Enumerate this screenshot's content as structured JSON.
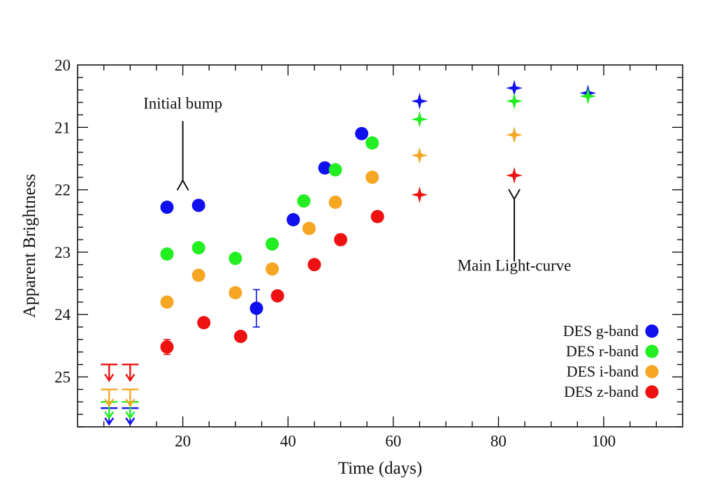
{
  "chart_data": {
    "type": "scatter",
    "title": "",
    "xlabel": "Time (days)",
    "ylabel": "Apparent Brightness",
    "xlim": [
      0,
      115
    ],
    "ylim": [
      25.8,
      20
    ],
    "y_inverted": true,
    "xticks": [
      20,
      40,
      60,
      80,
      100
    ],
    "yticks": [
      20,
      21,
      22,
      23,
      24,
      25
    ],
    "x_minor_step": 5,
    "y_minor_step": 0.2,
    "grid": false,
    "legend_position": "bottom-right",
    "series": [
      {
        "name": "DES g-band",
        "color": "#1010ee",
        "points": [
          {
            "x": 17,
            "y": 22.28,
            "marker": "circle"
          },
          {
            "x": 23,
            "y": 22.25,
            "marker": "circle"
          },
          {
            "x": 34,
            "y": 23.9,
            "marker": "circle",
            "yerr": 0.3
          },
          {
            "x": 41,
            "y": 22.48,
            "marker": "circle"
          },
          {
            "x": 47,
            "y": 21.65,
            "marker": "circle"
          },
          {
            "x": 54,
            "y": 21.1,
            "marker": "circle"
          },
          {
            "x": 65,
            "y": 20.58,
            "marker": "star"
          },
          {
            "x": 83,
            "y": 20.37,
            "marker": "star"
          },
          {
            "x": 97,
            "y": 20.45,
            "marker": "star"
          }
        ],
        "upper_limits": [
          {
            "x": 6,
            "y": 25.5
          },
          {
            "x": 10,
            "y": 25.5
          }
        ]
      },
      {
        "name": "DES r-band",
        "color": "#22ee22",
        "points": [
          {
            "x": 17,
            "y": 23.03,
            "marker": "circle"
          },
          {
            "x": 23,
            "y": 22.93,
            "marker": "circle"
          },
          {
            "x": 30,
            "y": 23.1,
            "marker": "circle"
          },
          {
            "x": 37,
            "y": 22.87,
            "marker": "circle"
          },
          {
            "x": 43,
            "y": 22.18,
            "marker": "circle"
          },
          {
            "x": 49,
            "y": 21.68,
            "marker": "circle"
          },
          {
            "x": 56,
            "y": 21.25,
            "marker": "circle"
          },
          {
            "x": 65,
            "y": 20.87,
            "marker": "star"
          },
          {
            "x": 83,
            "y": 20.58,
            "marker": "star"
          },
          {
            "x": 97,
            "y": 20.5,
            "marker": "star"
          }
        ],
        "upper_limits": [
          {
            "x": 6,
            "y": 25.4
          },
          {
            "x": 10,
            "y": 25.4
          }
        ]
      },
      {
        "name": "DES i-band",
        "color": "#f5a623",
        "points": [
          {
            "x": 17,
            "y": 23.8,
            "marker": "circle"
          },
          {
            "x": 23,
            "y": 23.37,
            "marker": "circle"
          },
          {
            "x": 30,
            "y": 23.65,
            "marker": "circle"
          },
          {
            "x": 37,
            "y": 23.27,
            "marker": "circle"
          },
          {
            "x": 44,
            "y": 22.62,
            "marker": "circle"
          },
          {
            "x": 49,
            "y": 22.2,
            "marker": "circle"
          },
          {
            "x": 56,
            "y": 21.8,
            "marker": "circle"
          },
          {
            "x": 65,
            "y": 21.45,
            "marker": "star"
          },
          {
            "x": 83,
            "y": 21.12,
            "marker": "star"
          }
        ],
        "upper_limits": [
          {
            "x": 6,
            "y": 25.2
          },
          {
            "x": 10,
            "y": 25.2
          }
        ]
      },
      {
        "name": "DES z-band",
        "color": "#ee1111",
        "points": [
          {
            "x": 17,
            "y": 24.52,
            "marker": "circle",
            "yerr": 0.12
          },
          {
            "x": 24,
            "y": 24.13,
            "marker": "circle"
          },
          {
            "x": 31,
            "y": 24.35,
            "marker": "circle"
          },
          {
            "x": 38,
            "y": 23.7,
            "marker": "circle"
          },
          {
            "x": 45,
            "y": 23.2,
            "marker": "circle"
          },
          {
            "x": 50,
            "y": 22.8,
            "marker": "circle"
          },
          {
            "x": 57,
            "y": 22.43,
            "marker": "circle"
          },
          {
            "x": 65,
            "y": 22.08,
            "marker": "star"
          },
          {
            "x": 83,
            "y": 21.77,
            "marker": "star"
          }
        ],
        "upper_limits": [
          {
            "x": 6,
            "y": 24.8
          },
          {
            "x": 10,
            "y": 24.8
          }
        ]
      }
    ],
    "annotations": [
      {
        "text": "Initial bump",
        "x": 20,
        "y": 20.7,
        "arrow_from_y": 20.9,
        "arrow_to_y": 21.85,
        "arrow_dir": "down"
      },
      {
        "text": "Main Light-curve",
        "x": 83,
        "y": 23.3,
        "arrow_from_y": 23.15,
        "arrow_to_y": 22.15,
        "arrow_dir": "up"
      }
    ]
  }
}
